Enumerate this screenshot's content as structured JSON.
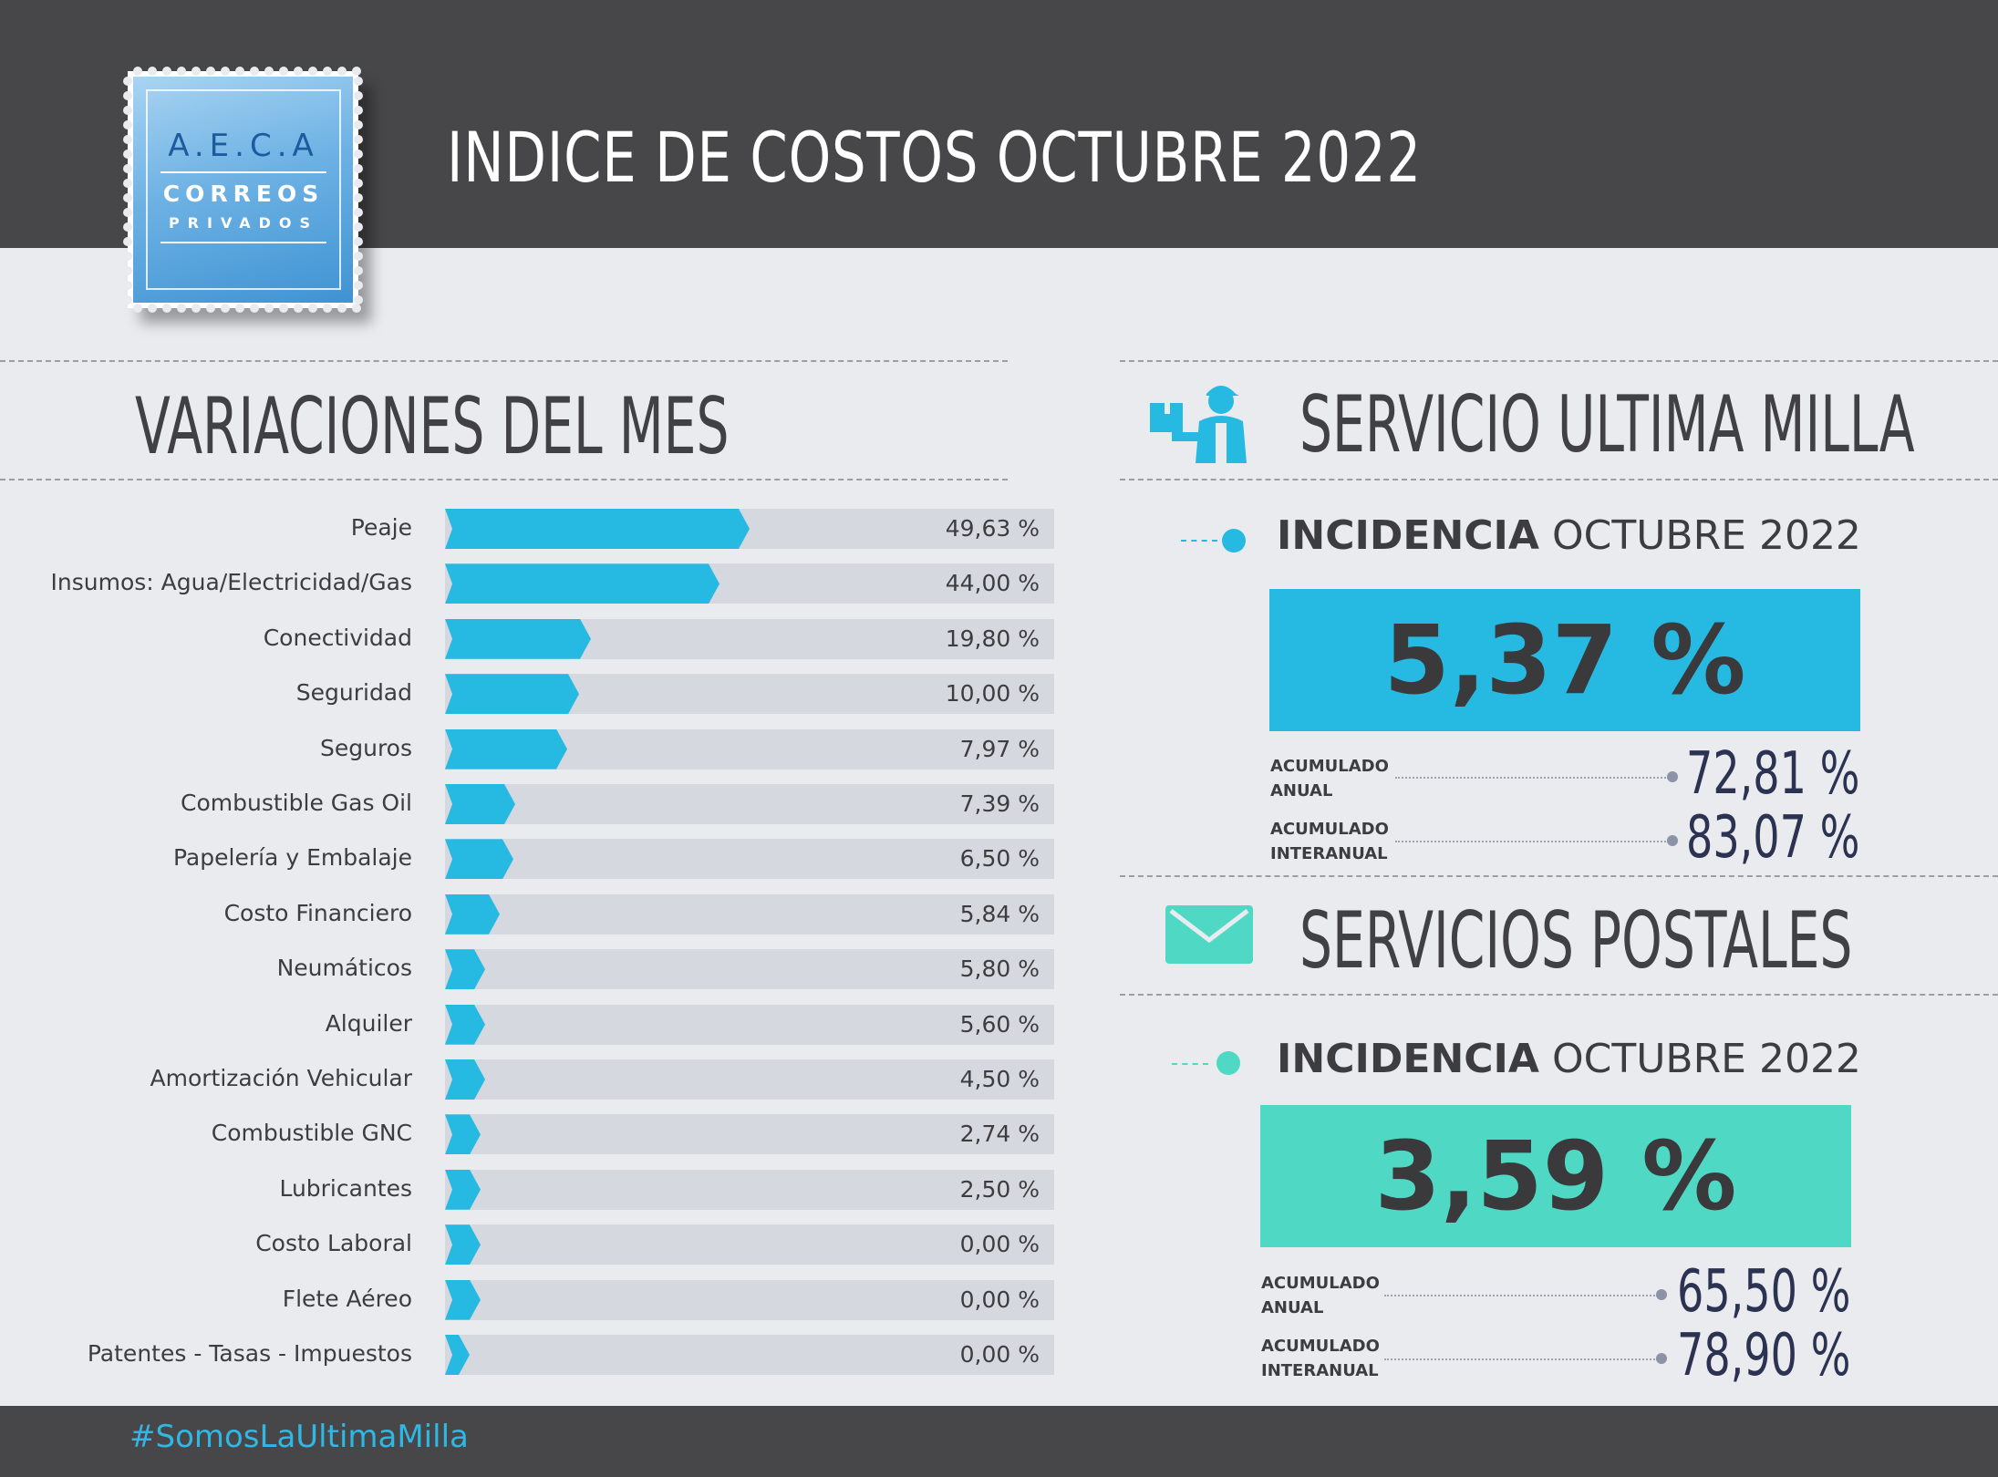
{
  "header": {
    "title": "INDICE DE COSTOS OCTUBRE 2022",
    "logo": {
      "line1": "A.E.C.A",
      "line2": "CORREOS",
      "line3": "PRIVADOS"
    }
  },
  "variaciones": {
    "title": "VARIACIONES DEL MES"
  },
  "chart_data": {
    "type": "bar",
    "title": "VARIACIONES DEL MES",
    "categories": [
      "Peaje",
      "Insumos: Agua/Electricidad/Gas",
      "Conectividad",
      "Seguridad",
      "Seguros",
      "Combustible Gas Oil",
      "Papelería y Embalaje",
      "Costo Financiero",
      "Neumáticos",
      "Alquiler",
      "Amortización Vehicular",
      "Combustible GNC",
      "Lubricantes",
      "Costo Laboral",
      "Flete Aéreo",
      "Patentes - Tasas - Impuestos"
    ],
    "values": [
      49.63,
      44.0,
      19.8,
      10.0,
      7.97,
      7.39,
      6.5,
      5.84,
      5.8,
      5.6,
      4.5,
      2.74,
      2.5,
      0.0,
      0.0,
      0.0
    ],
    "value_labels": [
      "49,63 %",
      "44,00 %",
      "19,80 %",
      "10,00 %",
      "7,97 %",
      "7,39 %",
      "6,50 %",
      "5,84 %",
      "5,80 %",
      "5,60 %",
      "4,50 %",
      "2,74 %",
      "2,50 %",
      "0,00 %",
      "0,00 %",
      "0,00 %"
    ],
    "bar_fill": [
      0.5,
      0.45,
      0.24,
      0.22,
      0.2,
      0.115,
      0.113,
      0.09,
      0.066,
      0.066,
      0.066,
      0.058,
      0.058,
      0.058,
      0.058,
      0.04
    ],
    "bar_color": "#26b9e2",
    "track_color": "#d6d8df"
  },
  "ultima_milla": {
    "title": "SERVICIO ULTIMA MILLA",
    "icon": "delivery-person-icon",
    "incidencia_bold": "INCIDENCIA",
    "incidencia_rest": " OCTUBRE 2022",
    "value": "5,37 %",
    "color": "#26b9e2",
    "acumulado_anual_label": [
      "ACUMULADO",
      "ANUAL"
    ],
    "acumulado_anual": "72,81 %",
    "acumulado_interanual_label": [
      "ACUMULADO",
      "INTERANUAL"
    ],
    "acumulado_interanual": "83,07 %"
  },
  "postales": {
    "title": "SERVICIOS POSTALES",
    "icon": "envelope-icon",
    "incidencia_bold": "INCIDENCIA",
    "incidencia_rest": " OCTUBRE 2022",
    "value": "3,59 %",
    "color": "#4fd9c5",
    "acumulado_anual_label": [
      "ACUMULADO",
      "ANUAL"
    ],
    "acumulado_anual": "65,50 %",
    "acumulado_interanual_label": [
      "ACUMULADO",
      "INTERANUAL"
    ],
    "acumulado_interanual": "78,90 %"
  },
  "footer": {
    "hashtag": "#SomosLaUltimaMilla"
  }
}
